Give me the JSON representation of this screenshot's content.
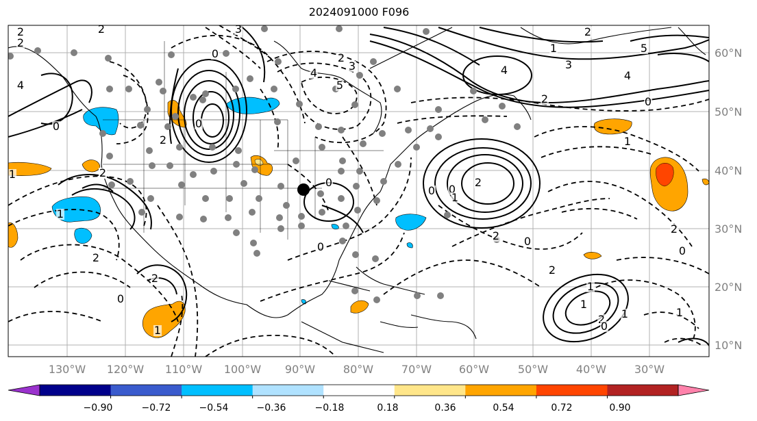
{
  "title": "2024091000 F096",
  "map": {
    "lon_labels": [
      "130°W",
      "120°W",
      "110°W",
      "100°W",
      "90°W",
      "80°W",
      "70°W",
      "60°W",
      "50°W",
      "40°W",
      "30°W"
    ],
    "lat_labels": [
      "60°N",
      "50°N",
      "40°N",
      "30°N",
      "20°N",
      "10°N"
    ],
    "contour_labels": [
      "2",
      "2",
      "4",
      "3",
      "0",
      "4",
      "5",
      "2",
      "3",
      "0",
      "2",
      "1",
      "4",
      "3",
      "4",
      "5",
      "2",
      "0",
      "2",
      "1",
      "2",
      "0",
      "0",
      "2",
      "2",
      "0",
      "1",
      "2",
      "2",
      "1",
      "0",
      "1",
      "2",
      "0",
      "0",
      "2",
      "0",
      "2",
      "1",
      "1",
      "1",
      "2",
      "1",
      "0",
      "1",
      "0",
      "2"
    ]
  },
  "colorbar": {
    "tick_labels": [
      "−0.90",
      "−0.72",
      "−0.54",
      "−0.36",
      "−0.18",
      "0.18",
      "0.36",
      "0.54",
      "0.72",
      "0.90"
    ],
    "colors": [
      "#9a32cd",
      "#00008b",
      "#3a5bcd",
      "#00bfff",
      "#b0e2ff",
      "#ffffff",
      "#ffe68a",
      "#ffa500",
      "#ff4500",
      "#b22222",
      "#ff82ab"
    ]
  }
}
